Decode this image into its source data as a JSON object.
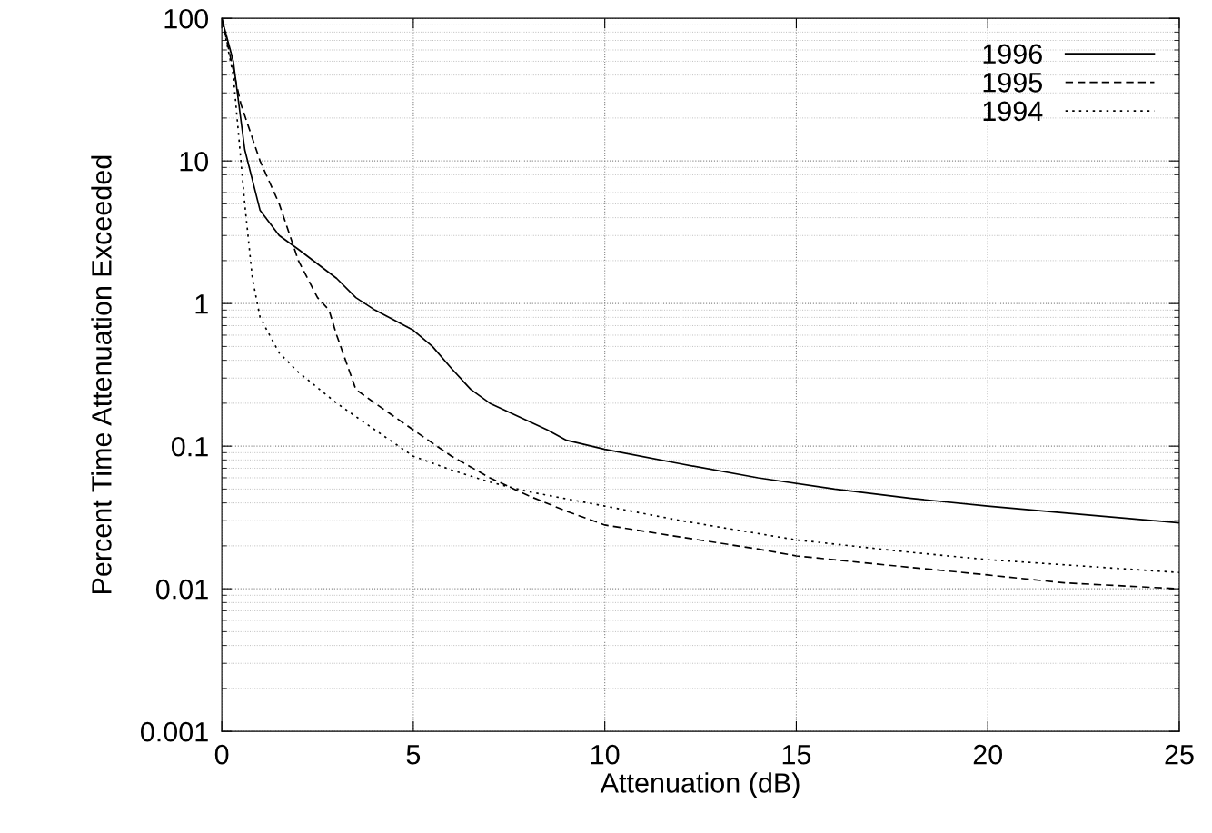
{
  "chart_data": {
    "type": "line",
    "xlabel": "Attenuation (dB)",
    "ylabel": "Percent Time Attenuation Exceeded",
    "log": "y",
    "xlim": [
      0,
      25
    ],
    "xticks": [
      0,
      5,
      10,
      15,
      20,
      25
    ],
    "ylim": [
      0.001,
      100
    ],
    "yticks": [
      {
        "value": 0.001,
        "label": "0.001"
      },
      {
        "value": 0.01,
        "label": "0.01"
      },
      {
        "value": 0.1,
        "label": "0.1"
      },
      {
        "value": 1,
        "label": "1"
      },
      {
        "value": 10,
        "label": "10"
      },
      {
        "value": 100,
        "label": "100"
      }
    ],
    "grid": true,
    "legend": "top right",
    "marker": "none",
    "series": [
      {
        "name": "1996",
        "color": "#000000",
        "line_style": "solid",
        "x": [
          0,
          0.3,
          0.6,
          1,
          1.5,
          2,
          3,
          3.5,
          4,
          5,
          5.5,
          6,
          6.5,
          7,
          8,
          8.5,
          9,
          10,
          12,
          14,
          16,
          18,
          20,
          22,
          25
        ],
        "values": [
          100,
          50,
          12,
          4.5,
          3.0,
          2.4,
          1.5,
          1.1,
          0.9,
          0.65,
          0.5,
          0.35,
          0.25,
          0.2,
          0.15,
          0.13,
          0.11,
          0.095,
          0.075,
          0.06,
          0.05,
          0.043,
          0.038,
          0.034,
          0.029
        ]
      },
      {
        "name": "1995",
        "color": "#000000",
        "line_style": "dashed",
        "x": [
          0,
          0.5,
          1,
          1.5,
          2,
          2.5,
          2.8,
          3,
          3.5,
          4,
          5,
          6,
          7,
          8,
          9,
          10,
          12,
          14,
          15,
          17,
          20,
          22,
          25
        ],
        "values": [
          100,
          25,
          10,
          5,
          2,
          1.1,
          0.9,
          0.6,
          0.25,
          0.2,
          0.13,
          0.085,
          0.06,
          0.045,
          0.035,
          0.028,
          0.023,
          0.019,
          0.017,
          0.015,
          0.0125,
          0.011,
          0.01
        ]
      },
      {
        "name": "1994",
        "color": "#000000",
        "line_style": "dotted",
        "x": [
          0,
          0.3,
          0.6,
          0.8,
          1,
          1.5,
          2,
          3,
          4,
          5,
          6,
          7,
          8,
          10,
          12,
          15,
          18,
          20,
          25
        ],
        "values": [
          100,
          40,
          5,
          1.5,
          0.8,
          0.45,
          0.33,
          0.2,
          0.13,
          0.085,
          0.068,
          0.056,
          0.048,
          0.038,
          0.03,
          0.022,
          0.018,
          0.016,
          0.013
        ]
      }
    ]
  }
}
